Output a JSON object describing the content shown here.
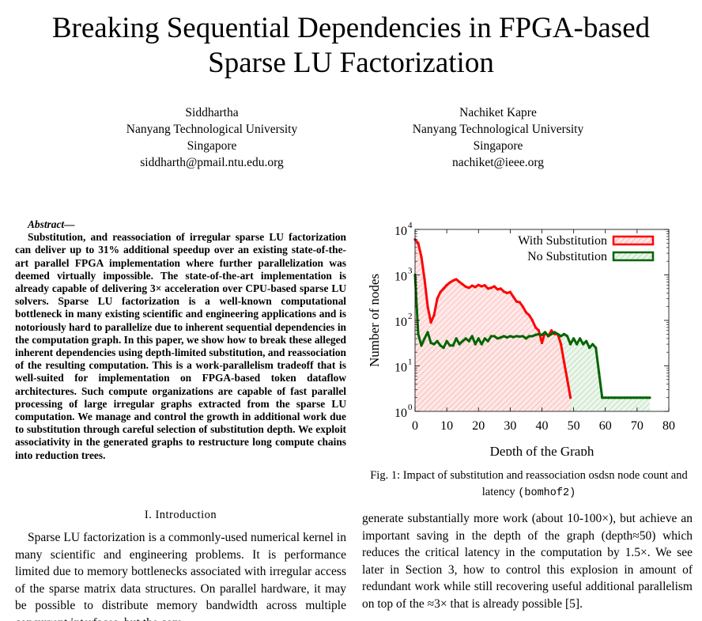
{
  "paper": {
    "title_line1": "Breaking Sequential Dependencies in FPGA-based",
    "title_line2": "Sparse LU Factorization",
    "authors": [
      {
        "name": "Siddhartha",
        "affiliation": "Nanyang Technological University",
        "location": "Singapore",
        "email": "siddharth@pmail.ntu.edu.org"
      },
      {
        "name": "Nachiket Kapre",
        "affiliation": "Nanyang Technological University",
        "location": "Singapore",
        "email": "nachiket@ieee.org"
      }
    ],
    "abstract_label": "Abstract—",
    "abstract": "Substitution, and reassociation of irregular sparse LU factorization can deliver up to 31% additional speedup over an existing state-of-the-art parallel FPGA implementation where further parallelization was deemed virtually impossible. The state-of-the-art implementation is already capable of delivering 3× acceleration over CPU-based sparse LU solvers. Sparse LU factorization is a well-known computational bottleneck in many existing scientific and engineering applications and is notoriously hard to parallelize due to inherent sequential dependencies in the computation graph. In this paper, we show how to break these alleged inherent dependencies using depth-limited substitution, and reassociation of the resulting computation. This is a work-parallelism tradeoff that is well-suited for implementation on FPGA-based token dataflow architectures. Such compute organizations are capable of fast parallel processing of large irregular graphs extracted from the sparse LU computation. We manage and control the growth in additional work due to substitution through careful selection of substitution depth. We exploit associativity in the generated graphs to restructure long compute chains into reduction trees.",
    "section_heading": "I. Introduction",
    "intro_text": "Sparse LU factorization is a commonly-used numerical kernel in many scientific and engineering problems. It is performance limited due to memory bottlenecks associated with irregular access of the sparse matrix data structures. On parallel hardware, it may be possible to distribute memory bandwidth across multiple concurrent interfaces, but the com-",
    "right_column_text": "generate substantially more work (about 10-100×), but achieve an important saving in the depth of the graph (depth≈50) which reduces the critical latency in the computation by 1.5×. We see later in Section 3, how to control this explosion in amount of redundant work while still recovering useful additional parallelism on top of the ≈3× that is already possible [5].",
    "figure_caption_text": "Fig. 1: Impact of substitution and reassociation osdsn node count and latency",
    "figure_caption_code": "(bomhof2)"
  },
  "chart_data": {
    "type": "area",
    "xlabel": "Depth of the Graph",
    "ylabel": "Number of nodes",
    "xlim": [
      0,
      80
    ],
    "xticks": [
      0,
      10,
      20,
      30,
      40,
      50,
      60,
      70,
      80
    ],
    "ylim": [
      1,
      10000
    ],
    "yscale": "log",
    "yticks": [
      {
        "value": 1,
        "base": "10",
        "exp": "0"
      },
      {
        "value": 10,
        "base": "10",
        "exp": "1"
      },
      {
        "value": 100,
        "base": "10",
        "exp": "2"
      },
      {
        "value": 1000,
        "base": "10",
        "exp": "3"
      },
      {
        "value": 10000,
        "base": "10",
        "exp": "4"
      }
    ],
    "legend_position": "top-right",
    "series": [
      {
        "name": "With Substitution",
        "color": "#ff0000",
        "fill": "#ffc8c8",
        "x": [
          0,
          1,
          2,
          3,
          4,
          5,
          6,
          7,
          8,
          9,
          10,
          11,
          12,
          13,
          14,
          15,
          16,
          17,
          18,
          19,
          20,
          21,
          22,
          23,
          24,
          25,
          26,
          27,
          28,
          29,
          30,
          31,
          32,
          33,
          34,
          35,
          36,
          37,
          38,
          39,
          40,
          41,
          42,
          43,
          44,
          45,
          46,
          47,
          48,
          49
        ],
        "values": [
          6000,
          5000,
          2500,
          800,
          200,
          90,
          130,
          300,
          420,
          500,
          600,
          680,
          750,
          800,
          700,
          620,
          550,
          520,
          580,
          540,
          600,
          560,
          590,
          500,
          520,
          560,
          480,
          500,
          430,
          400,
          420,
          330,
          260,
          250,
          200,
          150,
          130,
          100,
          70,
          60,
          32,
          55,
          45,
          60,
          50,
          50,
          30,
          12,
          5,
          2
        ]
      },
      {
        "name": "No Substitution",
        "color": "#006400",
        "fill": "#c8e6c8",
        "x": [
          0,
          1,
          2,
          3,
          4,
          5,
          6,
          7,
          8,
          9,
          10,
          11,
          12,
          13,
          14,
          15,
          16,
          17,
          18,
          19,
          20,
          21,
          22,
          23,
          24,
          25,
          26,
          27,
          28,
          29,
          30,
          31,
          32,
          33,
          34,
          35,
          36,
          37,
          38,
          39,
          40,
          41,
          42,
          43,
          44,
          45,
          46,
          47,
          48,
          49,
          50,
          51,
          52,
          53,
          54,
          55,
          56,
          57,
          58,
          59,
          60,
          61,
          62,
          63,
          64,
          65,
          66,
          67,
          68,
          69,
          70,
          71,
          72,
          73,
          74
        ],
        "values": [
          1000,
          50,
          28,
          40,
          55,
          32,
          30,
          35,
          28,
          25,
          35,
          28,
          28,
          40,
          30,
          35,
          40,
          35,
          45,
          30,
          40,
          30,
          40,
          35,
          45,
          45,
          40,
          42,
          45,
          42,
          45,
          43,
          45,
          44,
          45,
          40,
          45,
          45,
          48,
          50,
          48,
          55,
          45,
          50,
          55,
          50,
          45,
          50,
          45,
          30,
          40,
          30,
          40,
          30,
          35,
          25,
          30,
          25,
          7,
          2,
          2,
          2,
          2,
          2,
          2,
          2,
          2,
          2,
          2,
          2,
          2,
          2,
          2,
          2,
          2
        ]
      }
    ]
  }
}
